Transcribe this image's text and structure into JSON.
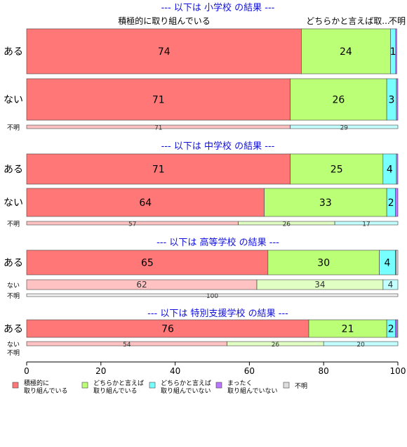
{
  "chart_data": {
    "type": "bar",
    "orientation": "horizontal",
    "stacked": true,
    "xlim": [
      0,
      100
    ],
    "x_ticks": [
      0,
      20,
      40,
      60,
      80,
      100
    ],
    "x_tick_labels": [
      "0",
      "20",
      "40",
      "60",
      "80",
      "100"
    ],
    "grid": false,
    "legend_position": "bottom",
    "column_headers": [
      "積極的に取り組んでいる",
      "どちらかと言えば取...",
      "不明"
    ],
    "series": [
      {
        "name": "積極的に\n取り組んでいる",
        "color": "#ff7777"
      },
      {
        "name": "どちらかと言えば\n取り組んでいる",
        "color": "#bbff77"
      },
      {
        "name": "どちらかと言えば\n取り組んでいない",
        "color": "#77ffff"
      },
      {
        "name": "まったく\n取り組んでいない",
        "color": "#bb77ff"
      },
      {
        "name": "不明",
        "color": "#dddddd"
      }
    ],
    "panels": [
      {
        "title": "--- 以下は 小学校 の結果 ---",
        "rows": [
          {
            "label": "ある",
            "values": [
              74,
              24,
              1.4,
              0.3,
              0
            ],
            "labels": [
              "74",
              "24",
              "1",
              "",
              ""
            ]
          },
          {
            "label": "ない",
            "values": [
              71,
              26,
              2.6,
              0.4,
              0
            ],
            "labels": [
              "71",
              "26",
              "3",
              "",
              ""
            ]
          },
          {
            "label": "不明",
            "values": [
              71,
              0,
              29,
              0,
              0
            ],
            "labels": [
              "71",
              "",
              "29",
              "",
              ""
            ]
          }
        ]
      },
      {
        "title": "--- 以下は 中学校 の結果 ---",
        "rows": [
          {
            "label": "ある",
            "values": [
              71,
              25,
              3.6,
              0.4,
              0
            ],
            "labels": [
              "71",
              "25",
              "4",
              "",
              ""
            ]
          },
          {
            "label": "ない",
            "values": [
              64,
              33,
              2.3,
              0.7,
              0
            ],
            "labels": [
              "64",
              "33",
              "2",
              "",
              ""
            ]
          },
          {
            "label": "不明",
            "values": [
              57,
              26,
              17,
              0,
              0
            ],
            "labels": [
              "57",
              "26",
              "17",
              "",
              ""
            ]
          }
        ]
      },
      {
        "title": "--- 以下は 高等学校 の結果 ---",
        "rows": [
          {
            "label": "ある",
            "values": [
              65,
              30,
              4.3,
              0.2,
              0.5
            ],
            "labels": [
              "65",
              "30",
              "4",
              "",
              ""
            ]
          },
          {
            "label": "ない",
            "values": [
              62,
              34,
              4,
              0,
              0
            ],
            "labels": [
              "62",
              "34",
              "4",
              "",
              ""
            ]
          },
          {
            "label": "不明",
            "values": [
              0,
              0,
              0,
              0,
              100
            ],
            "labels": [
              "",
              "",
              "",
              "",
              "100"
            ]
          }
        ]
      },
      {
        "title": "--- 以下は 特別支援学校 の結果 ---",
        "rows": [
          {
            "label": "ある",
            "values": [
              76,
              21,
              2.3,
              0.5,
              0.2
            ],
            "labels": [
              "76",
              "21",
              "2",
              "",
              ""
            ]
          },
          {
            "label": "ない",
            "values": [
              54,
              26,
              20,
              0,
              0
            ],
            "labels": [
              "54",
              "26",
              "20",
              "",
              ""
            ]
          },
          {
            "label": "不明",
            "values": [
              0,
              0,
              0,
              0,
              0
            ],
            "labels": [
              "",
              "",
              "",
              "",
              ""
            ]
          }
        ]
      }
    ]
  }
}
